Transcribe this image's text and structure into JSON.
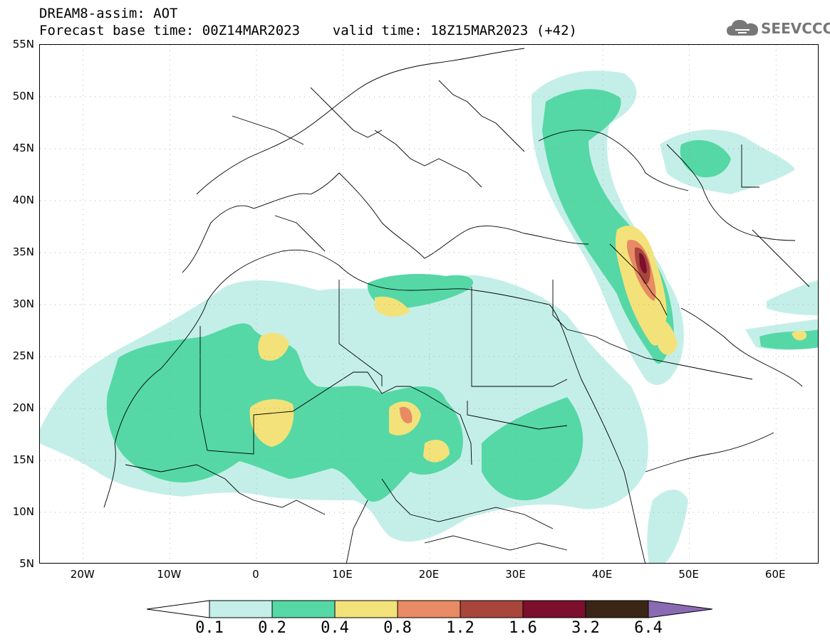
{
  "title": {
    "line1": "DREAM8-assim: AOT",
    "line2": "Forecast base time: 00Z14MAR2023    valid time: 18Z15MAR2023 (+42)"
  },
  "logo": {
    "text": "SEEVCCC",
    "icon": "cloud-icon"
  },
  "map": {
    "lon_range": [
      -25,
      65
    ],
    "lat_range": [
      5,
      55
    ],
    "lat_ticks": [
      "55N",
      "50N",
      "45N",
      "40N",
      "35N",
      "30N",
      "25N",
      "20N",
      "15N",
      "10N",
      "5N"
    ],
    "lat_values": [
      55,
      50,
      45,
      40,
      35,
      30,
      25,
      20,
      15,
      10,
      5
    ],
    "lon_ticks": [
      "20W",
      "10W",
      "0",
      "10E",
      "20E",
      "30E",
      "40E",
      "50E",
      "60E"
    ],
    "lon_values": [
      -20,
      -10,
      0,
      10,
      20,
      30,
      40,
      50,
      60
    ]
  },
  "colorbar": {
    "labels": [
      "0.1",
      "0.2",
      "0.4",
      "0.8",
      "1.2",
      "1.6",
      "3.2",
      "6.4"
    ],
    "colors": [
      "#ffffff",
      "#c4efe8",
      "#55d8a5",
      "#f3e27a",
      "#e88a63",
      "#a9463b",
      "#7c0f2e",
      "#3b2516",
      "#8a6bb3"
    ]
  }
}
